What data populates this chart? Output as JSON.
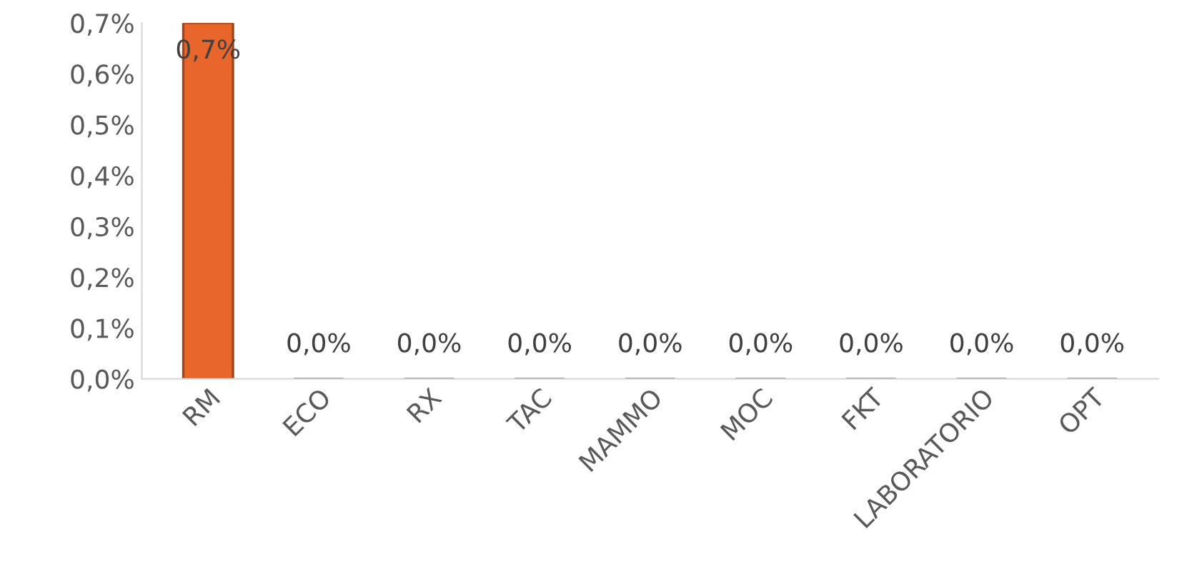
{
  "chart_data": {
    "type": "bar",
    "categories": [
      "RM",
      "ECO",
      "RX",
      "TAC",
      "MAMMO",
      "MOC",
      "FKT",
      "LABORATORIO",
      "OPT"
    ],
    "values": [
      0.7,
      0,
      0,
      0,
      0,
      0,
      0,
      0,
      0
    ],
    "value_labels": [
      "0,7%",
      "0,0%",
      "0,0%",
      "0,0%",
      "0,0%",
      "0,0%",
      "0,0%",
      "0,0%",
      "0,0%"
    ],
    "color": "#e8652b",
    "ylim": [
      0,
      0.7
    ],
    "yticks": [
      {
        "value": 0,
        "label": "0,0%"
      },
      {
        "value": 0.1,
        "label": "0,1%"
      },
      {
        "value": 0.2,
        "label": "0,2%"
      },
      {
        "value": 0.3,
        "label": "0,3%"
      },
      {
        "value": 0.4,
        "label": "0,4%"
      },
      {
        "value": 0.5,
        "label": "0,5%"
      },
      {
        "value": 0.6,
        "label": "0,6%"
      },
      {
        "value": 0.7,
        "label": "0,7%"
      }
    ],
    "grid": false,
    "legend": false
  }
}
